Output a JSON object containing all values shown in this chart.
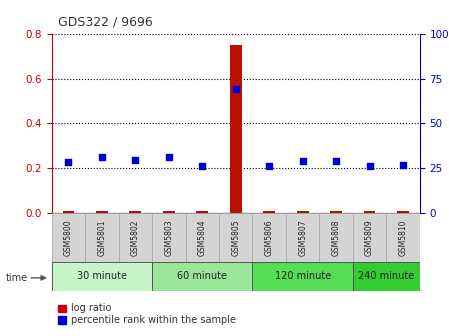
{
  "title": "GDS322 / 9696",
  "samples": [
    "GSM5800",
    "GSM5801",
    "GSM5802",
    "GSM5803",
    "GSM5804",
    "GSM5805",
    "GSM5806",
    "GSM5807",
    "GSM5808",
    "GSM5809",
    "GSM5810"
  ],
  "log_ratio": [
    0.01,
    0.01,
    0.01,
    0.01,
    0.01,
    0.75,
    0.01,
    0.01,
    0.01,
    0.01,
    0.01
  ],
  "percentile_rank_pct": [
    28.5,
    31.5,
    29.5,
    31.5,
    26.5,
    69.0,
    26.5,
    29.0,
    29.0,
    26.5,
    26.8
  ],
  "ylim_left": [
    0,
    0.8
  ],
  "ylim_right": [
    0,
    100
  ],
  "yticks_left": [
    0,
    0.2,
    0.4,
    0.6,
    0.8
  ],
  "yticks_right": [
    0,
    25,
    50,
    75,
    100
  ],
  "groups": [
    {
      "label": "30 minute",
      "start": 0,
      "end": 3,
      "color": "#c8f5c8"
    },
    {
      "label": "60 minute",
      "start": 3,
      "end": 6,
      "color": "#99e699"
    },
    {
      "label": "120 minute",
      "start": 6,
      "end": 9,
      "color": "#55dd55"
    },
    {
      "label": "240 minute",
      "start": 9,
      "end": 11,
      "color": "#33cc33"
    }
  ],
  "bar_color": "#bb1100",
  "dot_color": "#0000cc",
  "grid_color": "#000000",
  "title_color": "#333333",
  "left_tick_color": "#cc0000",
  "right_tick_color": "#0000cc",
  "bg_color": "#ffffff",
  "sample_box_color": "#d4d4d4",
  "sample_box_edge": "#aaaaaa",
  "legend_log_ratio_color": "#cc0000",
  "legend_percentile_color": "#0000cc",
  "bar_width": 0.35
}
